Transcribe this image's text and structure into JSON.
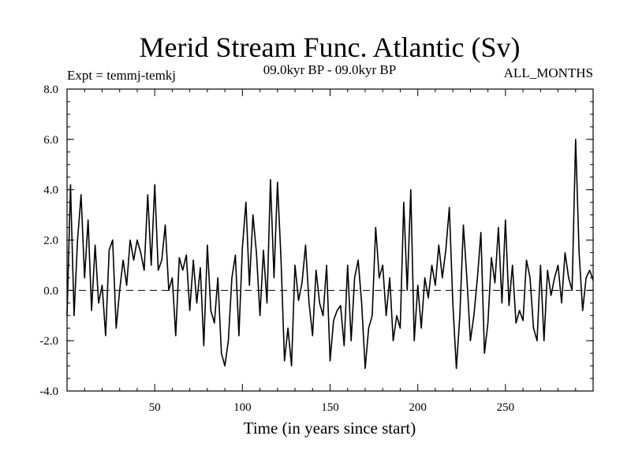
{
  "chart_data": {
    "type": "line",
    "title": "Merid Stream Func. Atlantic (Sv)",
    "subtitle_left": "Expt = temmj-temkj",
    "subtitle_center": "09.0kyr BP - 09.0kyr BP",
    "subtitle_right": "ALL_MONTHS",
    "xlabel": "Time (in years since start)",
    "ylabel": "",
    "xlim": [
      0,
      300
    ],
    "ylim": [
      -4.0,
      8.0
    ],
    "xticks": [
      50,
      100,
      150,
      200,
      250
    ],
    "yticks": [
      "-4.0",
      "-2.0",
      "0.0",
      "2.0",
      "4.0",
      "6.0",
      "8.0"
    ],
    "reference_line": 0.0,
    "series": [
      {
        "name": "Merid Stream Func.",
        "x": [
          0,
          2,
          4,
          6,
          8,
          10,
          12,
          14,
          16,
          18,
          20,
          22,
          24,
          26,
          28,
          30,
          32,
          34,
          36,
          38,
          40,
          42,
          44,
          46,
          48,
          50,
          52,
          54,
          56,
          58,
          60,
          62,
          64,
          66,
          68,
          70,
          72,
          74,
          76,
          78,
          80,
          82,
          84,
          86,
          88,
          90,
          92,
          94,
          96,
          98,
          100,
          102,
          104,
          106,
          108,
          110,
          112,
          114,
          116,
          118,
          120,
          122,
          124,
          126,
          128,
          130,
          132,
          134,
          136,
          138,
          140,
          142,
          144,
          146,
          148,
          150,
          152,
          154,
          156,
          158,
          160,
          162,
          164,
          166,
          168,
          170,
          172,
          174,
          176,
          178,
          180,
          182,
          184,
          186,
          188,
          190,
          192,
          194,
          196,
          198,
          200,
          202,
          204,
          206,
          208,
          210,
          212,
          214,
          216,
          218,
          220,
          222,
          224,
          226,
          228,
          230,
          232,
          234,
          236,
          238,
          240,
          242,
          244,
          246,
          248,
          250,
          252,
          254,
          256,
          258,
          260,
          262,
          264,
          266,
          268,
          270,
          272,
          274,
          276,
          278,
          280,
          282,
          284,
          286,
          288,
          290,
          292,
          294,
          296,
          298,
          300
        ],
        "values": [
          -1.0,
          4.2,
          -1.0,
          2.0,
          3.8,
          0.5,
          2.8,
          -0.8,
          1.8,
          -0.5,
          0.2,
          -1.8,
          1.6,
          2.0,
          -1.5,
          0.0,
          1.2,
          0.2,
          2.0,
          1.2,
          2.0,
          1.5,
          0.8,
          3.8,
          1.0,
          4.2,
          0.8,
          1.2,
          2.6,
          0.0,
          0.5,
          -1.8,
          1.3,
          0.8,
          1.4,
          -0.8,
          1.2,
          -0.5,
          0.9,
          -2.2,
          1.8,
          -0.8,
          -1.3,
          0.5,
          -2.5,
          -3.0,
          -2.0,
          0.5,
          1.4,
          -1.8,
          1.7,
          3.5,
          0.2,
          3.0,
          1.5,
          -1.0,
          1.6,
          -0.5,
          4.4,
          0.5,
          4.3,
          1.3,
          -2.8,
          -1.5,
          -3.0,
          1.0,
          -0.4,
          0.3,
          1.8,
          -0.5,
          -1.8,
          0.8,
          -0.5,
          -1.0,
          1.0,
          -2.8,
          -1.2,
          -0.8,
          -0.6,
          -2.2,
          1.0,
          -2.0,
          0.5,
          1.2,
          -0.5,
          -3.1,
          -1.5,
          -1.0,
          2.5,
          0.5,
          1.0,
          -1.0,
          0.5,
          -2.0,
          -1.0,
          -1.5,
          3.5,
          0.0,
          4.0,
          -2.0,
          0.2,
          -1.5,
          0.5,
          -0.3,
          1.0,
          0.2,
          1.8,
          0.5,
          1.6,
          3.3,
          -0.5,
          -3.1,
          -1.0,
          2.6,
          0.5,
          -2.0,
          -1.0,
          0.5,
          2.3,
          -2.5,
          -1.3,
          1.3,
          0.3,
          2.5,
          -0.5,
          2.8,
          -0.6,
          1.0,
          -1.3,
          -0.8,
          -1.2,
          1.2,
          0.5,
          -1.5,
          -2.0,
          1.0,
          -2.0,
          0.8,
          -0.2,
          0.5,
          1.0,
          -0.5,
          1.5,
          0.5,
          0.0,
          6.0,
          1.5,
          -0.8,
          0.5,
          0.8,
          0.4
        ]
      }
    ]
  }
}
